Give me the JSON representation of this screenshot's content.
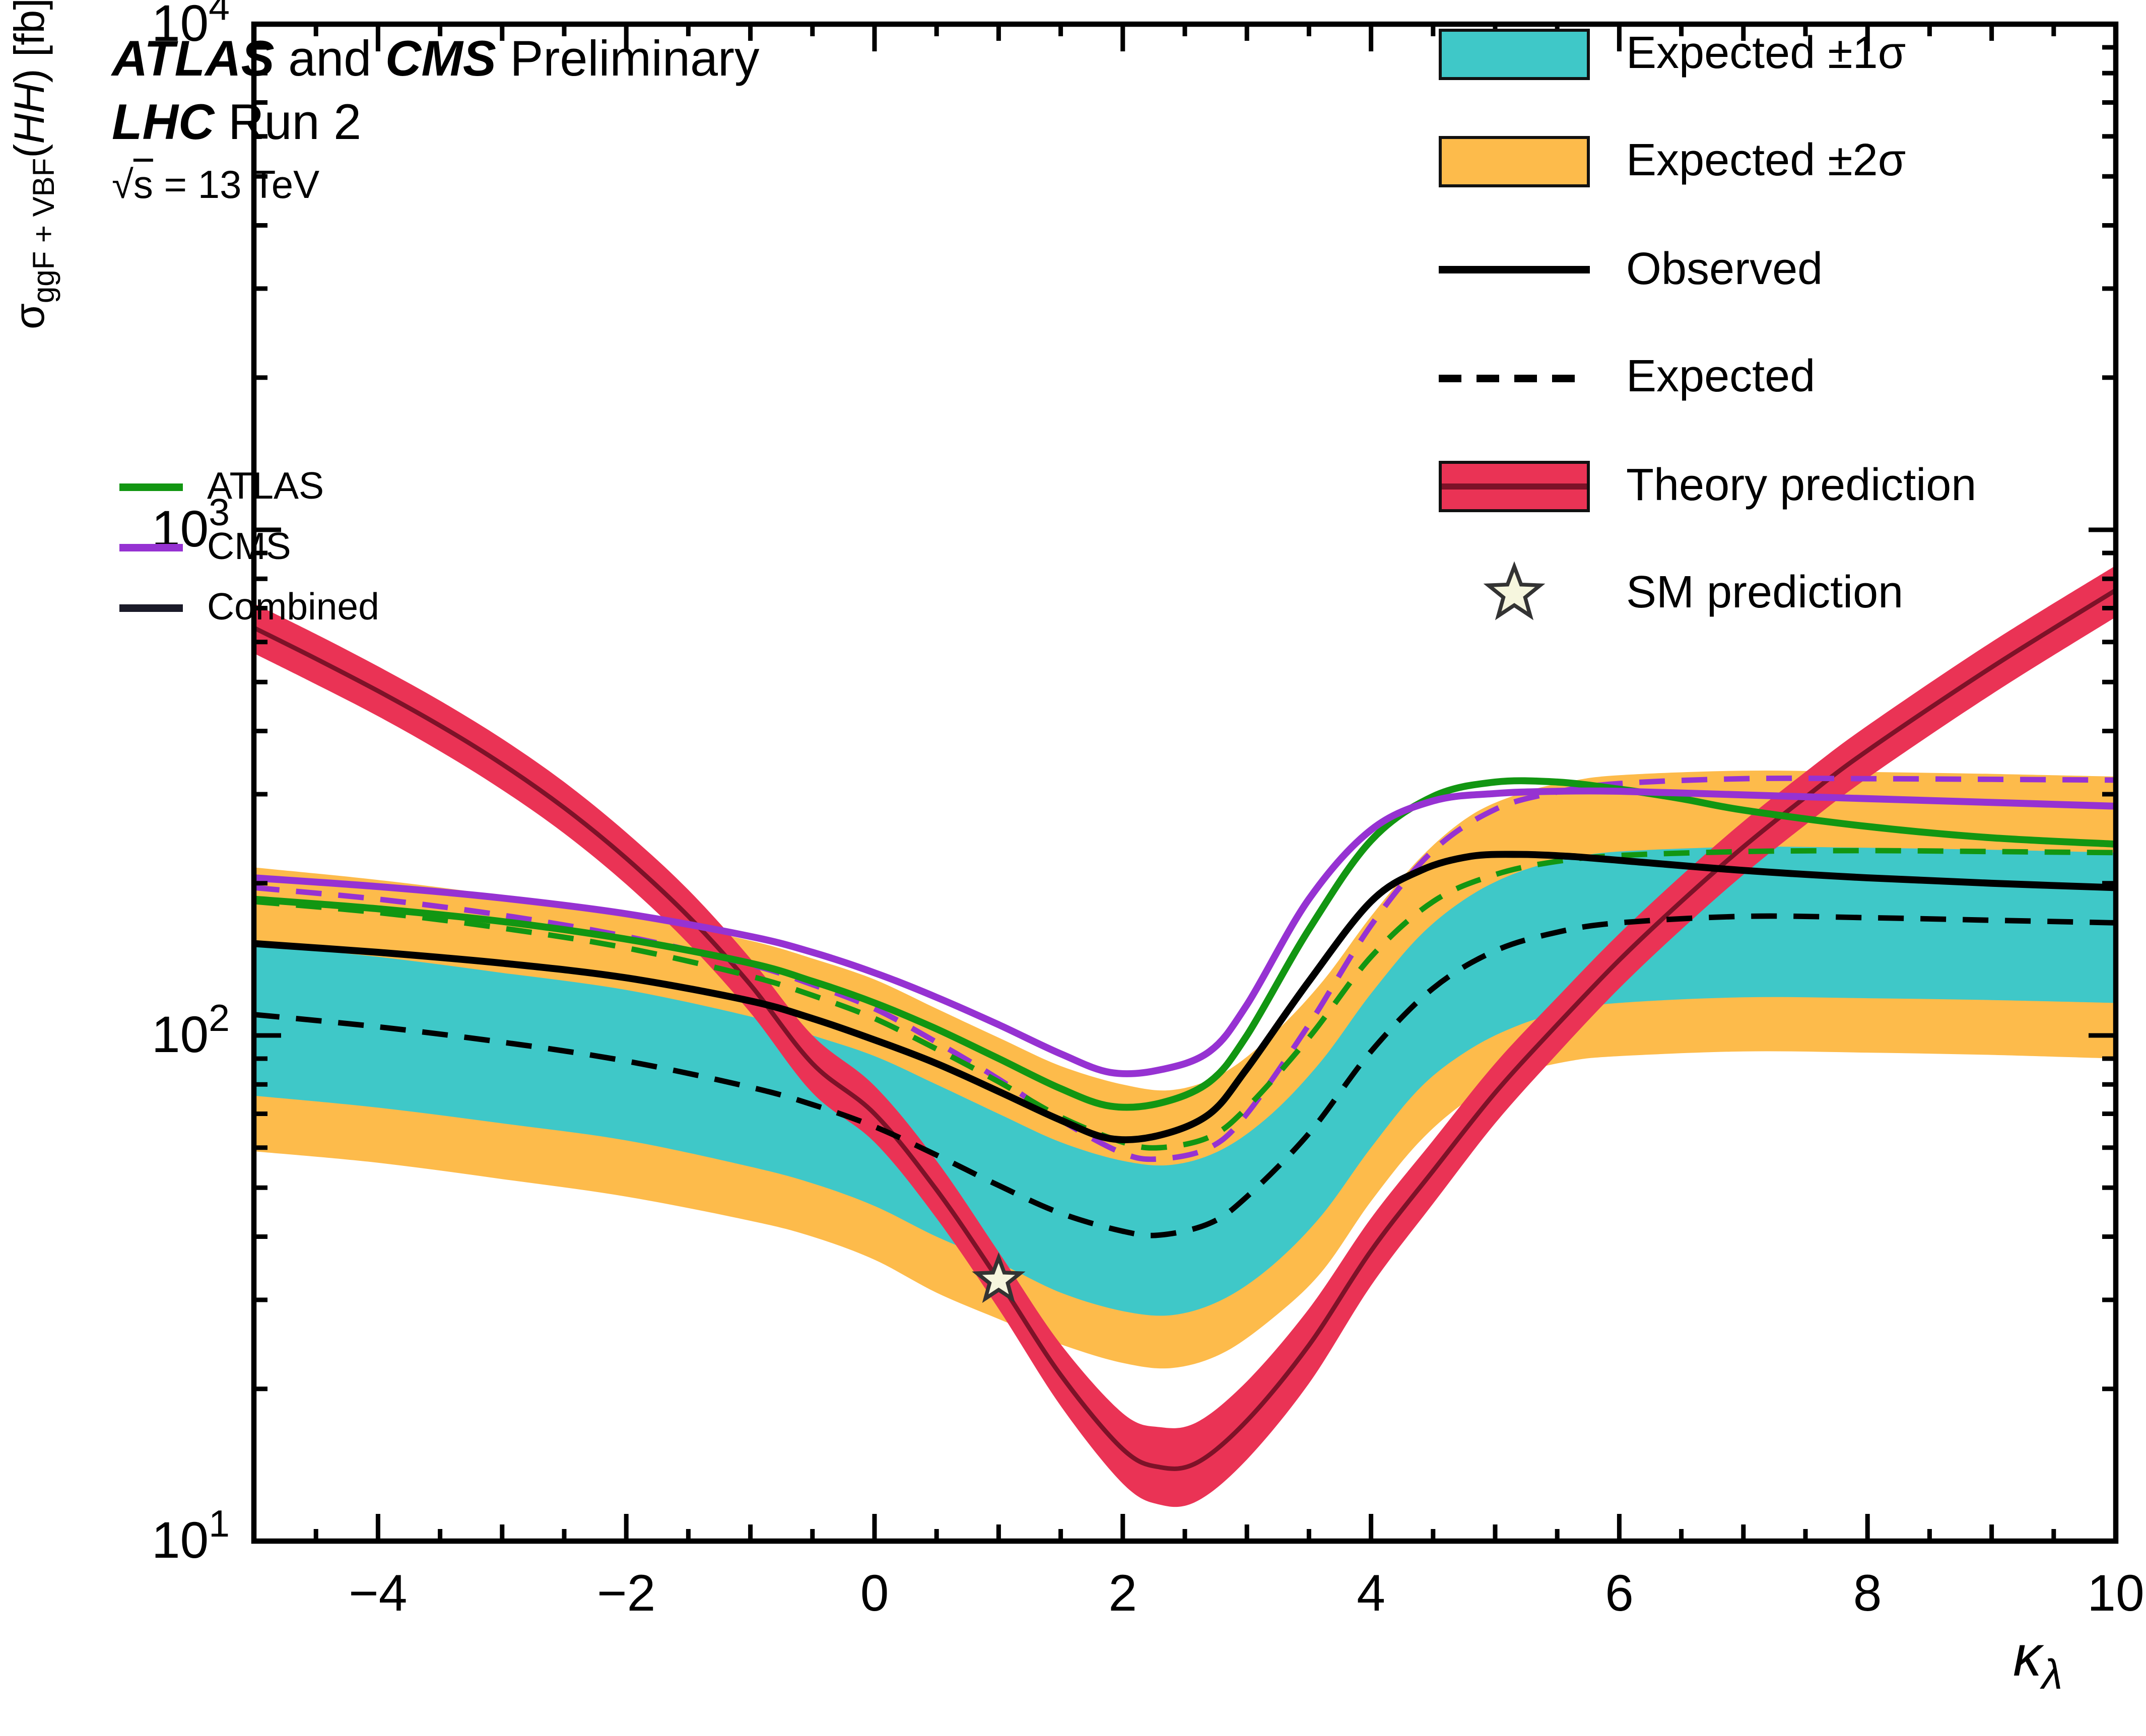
{
  "header": {
    "title_parts": {
      "exp1": "ATLAS",
      "and": " and ",
      "exp2": "CMS",
      "status": " Preliminary"
    },
    "subtitle_parts": {
      "collider": "LHC",
      "run": " Run 2"
    },
    "energy": {
      "sqrt": "√",
      "s": "s",
      "rest": " = 13 TeV"
    }
  },
  "mini_legend": {
    "items": [
      {
        "label": "ATLAS",
        "color": "#129612"
      },
      {
        "label": "CMS",
        "color": "#9632D2"
      },
      {
        "label": "Combined",
        "color": "#1A1A28"
      }
    ]
  },
  "legend": {
    "items": [
      {
        "label": "Expected ±1σ",
        "type": "band"
      },
      {
        "label": "Expected ±2σ",
        "type": "band"
      },
      {
        "label": "Observed",
        "type": "line"
      },
      {
        "label": "Expected",
        "type": "dashed"
      },
      {
        "label": "Theory prediction",
        "type": "theory-band"
      },
      {
        "label": "SM prediction",
        "type": "star"
      }
    ]
  },
  "axes": {
    "y_label": {
      "sigma": "σ",
      "sub": "ggF + VBF",
      "open": "(",
      "process": "HH",
      "close": ") [fb]"
    },
    "x_label": {
      "kappa": "κ",
      "sub": "λ"
    },
    "x_tick_labels": [
      "−4",
      "−2",
      "0",
      "2",
      "4",
      "6",
      "8",
      "10"
    ],
    "y_tick_base": "10",
    "y_tick_exponents": [
      "1",
      "2",
      "3",
      "4"
    ]
  },
  "chart_data": {
    "type": "line",
    "title": "ATLAS and CMS Preliminary, LHC Run 2, √s = 13 TeV",
    "xlabel": "κ_λ",
    "ylabel": "σ_ggF+VBF(HH) [fb]",
    "xlim": [
      -5,
      10
    ],
    "ylim": [
      10,
      10000
    ],
    "yscale": "log",
    "grid": false,
    "legend_position": "top-right",
    "x_major_ticks": [
      -4,
      -2,
      0,
      2,
      4,
      6,
      8,
      10
    ],
    "x_minor_step": 0.5,
    "bands": [
      {
        "name": "expected-2sigma",
        "label": "Expected ±2σ",
        "color": "#FDBB4B",
        "points": [
          [
            -5,
            59,
            215
          ],
          [
            -4,
            56,
            203
          ],
          [
            -3,
            52,
            189
          ],
          [
            -2,
            48,
            174
          ],
          [
            -1,
            43,
            154
          ],
          [
            -0.5,
            40,
            142
          ],
          [
            0,
            36,
            129
          ],
          [
            0.5,
            31,
            113
          ],
          [
            1,
            27.5,
            99
          ],
          [
            1.5,
            24.5,
            87
          ],
          [
            2,
            22.5,
            80
          ],
          [
            2.4,
            22,
            78
          ],
          [
            2.8,
            23.5,
            84
          ],
          [
            3.2,
            27.5,
            100
          ],
          [
            3.6,
            34,
            127
          ],
          [
            4,
            47,
            172
          ],
          [
            4.4,
            62,
            225
          ],
          [
            4.8,
            75,
            272
          ],
          [
            5.2,
            84,
            301
          ],
          [
            5.6,
            89,
            318
          ],
          [
            6,
            91,
            327
          ],
          [
            7,
            93,
            334
          ],
          [
            8,
            92.5,
            332
          ],
          [
            9,
            91.5,
            329
          ],
          [
            10,
            90,
            325
          ]
        ]
      },
      {
        "name": "expected-1sigma",
        "label": "Expected ±1σ",
        "color": "#3FC8C8",
        "points": [
          [
            -5,
            76,
            151
          ],
          [
            -4,
            72,
            143
          ],
          [
            -3,
            67,
            133
          ],
          [
            -2,
            62,
            123
          ],
          [
            -1,
            55,
            109
          ],
          [
            -0.5,
            51,
            100
          ],
          [
            0,
            46,
            91
          ],
          [
            0.5,
            40,
            80
          ],
          [
            1,
            35.5,
            70
          ],
          [
            1.5,
            31,
            61.5
          ],
          [
            2,
            28.5,
            56.5
          ],
          [
            2.4,
            28,
            55.5
          ],
          [
            2.8,
            30,
            59.5
          ],
          [
            3.2,
            35,
            70
          ],
          [
            3.6,
            44,
            89
          ],
          [
            4,
            60,
            121
          ],
          [
            4.4,
            79,
            158
          ],
          [
            4.8,
            94,
            189
          ],
          [
            5.2,
            105,
            211
          ],
          [
            5.6,
            112,
            224
          ],
          [
            6,
            116,
            231
          ],
          [
            7,
            119,
            236
          ],
          [
            8,
            118.5,
            235
          ],
          [
            9,
            117.5,
            233
          ],
          [
            10,
            116,
            230
          ]
        ]
      }
    ],
    "theory": {
      "name": "theory-prediction",
      "label": "Theory prediction",
      "band_color": "#EA3355",
      "line_color": "#7D1228",
      "points": [
        [
          -5,
          570,
          640,
          715
        ],
        [
          -4.5,
          495,
          556,
          622
        ],
        [
          -4,
          428,
          480,
          537
        ],
        [
          -3.5,
          365,
          410,
          459
        ],
        [
          -3,
          306,
          344,
          386
        ],
        [
          -2.5,
          251,
          282,
          317
        ],
        [
          -2,
          199,
          224,
          252
        ],
        [
          -1.5,
          152,
          172,
          194
        ],
        [
          -1,
          111,
          126,
          142
        ],
        [
          -0.5,
          77,
          88,
          100
        ],
        [
          0,
          61.5,
          70,
          79.5
        ],
        [
          0.5,
          43.5,
          49.5,
          56.5
        ],
        [
          1,
          28.8,
          32.8,
          37.3
        ],
        [
          1.5,
          18.5,
          21.3,
          24.5
        ],
        [
          2,
          13,
          15.2,
          17.9
        ],
        [
          2.3,
          11.8,
          14,
          16.8
        ],
        [
          2.6,
          12,
          14.3,
          17.2
        ],
        [
          3,
          14.5,
          17.3,
          20.7
        ],
        [
          3.5,
          20.5,
          24.4,
          28.8
        ],
        [
          4,
          32,
          37.5,
          43.5
        ],
        [
          4.5,
          46.5,
          54,
          62
        ],
        [
          5,
          67,
          77,
          88
        ],
        [
          5.5,
          92,
          105,
          119
        ],
        [
          6,
          124,
          141,
          159
        ],
        [
          6.5,
          162,
          184,
          207
        ],
        [
          7,
          208,
          236,
          265
        ],
        [
          7.5,
          261,
          296,
          332
        ],
        [
          8,
          323,
          366,
          410
        ],
        [
          9,
          473,
          535,
          600
        ],
        [
          10,
          672,
          760,
          850
        ]
      ]
    },
    "series": [
      {
        "name": "cms-expected",
        "label": "CMS expected",
        "style": "dashed",
        "color": "#9632D2",
        "points": [
          [
            -5,
            196
          ],
          [
            -4,
            186
          ],
          [
            -3,
            173
          ],
          [
            -2,
            157
          ],
          [
            -1,
            138
          ],
          [
            -0.5,
            126
          ],
          [
            0,
            113
          ],
          [
            0.5,
            97
          ],
          [
            1,
            82
          ],
          [
            1.5,
            68
          ],
          [
            2,
            58.5
          ],
          [
            2.3,
            57
          ],
          [
            2.7,
            60
          ],
          [
            3,
            70
          ],
          [
            3.5,
            105
          ],
          [
            4,
            165
          ],
          [
            4.5,
            232
          ],
          [
            5,
            280
          ],
          [
            5.5,
            303
          ],
          [
            6,
            315
          ],
          [
            7,
            322
          ],
          [
            8,
            322
          ],
          [
            9,
            321
          ],
          [
            10,
            320
          ]
        ]
      },
      {
        "name": "atlas-expected",
        "label": "ATLAS expected",
        "style": "dashed",
        "color": "#129612",
        "points": [
          [
            -5,
            184
          ],
          [
            -4,
            175
          ],
          [
            -3,
            163
          ],
          [
            -2,
            149
          ],
          [
            -1,
            131
          ],
          [
            -0.5,
            120
          ],
          [
            0,
            108
          ],
          [
            0.5,
            94
          ],
          [
            1,
            81
          ],
          [
            1.5,
            69
          ],
          [
            2,
            61.5
          ],
          [
            2.3,
            60
          ],
          [
            2.7,
            63
          ],
          [
            3,
            72
          ],
          [
            3.5,
            99
          ],
          [
            4,
            143
          ],
          [
            4.5,
            184
          ],
          [
            5,
            208
          ],
          [
            5.5,
            221
          ],
          [
            6,
            227
          ],
          [
            7,
            231
          ],
          [
            8,
            232
          ],
          [
            9,
            231
          ],
          [
            10,
            230
          ]
        ]
      },
      {
        "name": "combined-expected",
        "label": "Expected",
        "style": "dashed",
        "color": "#000000",
        "points": [
          [
            -5,
            110
          ],
          [
            -4,
            104
          ],
          [
            -3,
            97
          ],
          [
            -2,
            89
          ],
          [
            -1,
            79
          ],
          [
            -0.5,
            73
          ],
          [
            0,
            66
          ],
          [
            0.5,
            58
          ],
          [
            1,
            50.5
          ],
          [
            1.5,
            44.5
          ],
          [
            2,
            41
          ],
          [
            2.3,
            40.3
          ],
          [
            2.7,
            42.5
          ],
          [
            3,
            48
          ],
          [
            3.5,
            64
          ],
          [
            4,
            93
          ],
          [
            4.5,
            124
          ],
          [
            5,
            147
          ],
          [
            5.5,
            160
          ],
          [
            6,
            167
          ],
          [
            7,
            172
          ],
          [
            8,
            171
          ],
          [
            9,
            169
          ],
          [
            10,
            167
          ]
        ]
      },
      {
        "name": "atlas-observed",
        "label": "ATLAS",
        "style": "solid",
        "color": "#129612",
        "points": [
          [
            -5,
            186
          ],
          [
            -4,
            178
          ],
          [
            -3,
            168
          ],
          [
            -2,
            155
          ],
          [
            -1,
            139
          ],
          [
            -0.5,
            128
          ],
          [
            0,
            116
          ],
          [
            0.5,
            103
          ],
          [
            1,
            90
          ],
          [
            1.5,
            78.5
          ],
          [
            1.9,
            72.5
          ],
          [
            2.3,
            73.5
          ],
          [
            2.7,
            81
          ],
          [
            3,
            100
          ],
          [
            3.5,
            162
          ],
          [
            4,
            243
          ],
          [
            4.5,
            297
          ],
          [
            5,
            317
          ],
          [
            5.5,
            317
          ],
          [
            6,
            307
          ],
          [
            6.5,
            294
          ],
          [
            7,
            279
          ],
          [
            8,
            259
          ],
          [
            9,
            246
          ],
          [
            10,
            239
          ]
        ]
      },
      {
        "name": "cms-observed",
        "label": "CMS",
        "style": "solid",
        "color": "#9632D2",
        "points": [
          [
            -5,
            205
          ],
          [
            -4,
            197
          ],
          [
            -3,
            187
          ],
          [
            -2,
            174
          ],
          [
            -1,
            157
          ],
          [
            -0.5,
            146
          ],
          [
            0,
            133
          ],
          [
            0.5,
            119
          ],
          [
            1,
            105
          ],
          [
            1.5,
            92
          ],
          [
            1.9,
            84.5
          ],
          [
            2.3,
            85.5
          ],
          [
            2.7,
            93
          ],
          [
            3,
            115
          ],
          [
            3.5,
            186
          ],
          [
            4,
            255
          ],
          [
            4.5,
            291
          ],
          [
            5,
            301
          ],
          [
            5.5,
            304
          ],
          [
            6,
            304
          ],
          [
            7,
            299
          ],
          [
            8,
            294
          ],
          [
            9,
            289
          ],
          [
            10,
            284
          ]
        ]
      },
      {
        "name": "combined-observed",
        "label": "Observed",
        "style": "solid",
        "color": "#000000",
        "points": [
          [
            -5,
            152
          ],
          [
            -4,
            146
          ],
          [
            -3,
            139
          ],
          [
            -2,
            130
          ],
          [
            -1,
            117
          ],
          [
            -0.5,
            108
          ],
          [
            0,
            98
          ],
          [
            0.5,
            88
          ],
          [
            1,
            77.5
          ],
          [
            1.5,
            68
          ],
          [
            1.9,
            62.5
          ],
          [
            2.3,
            63.5
          ],
          [
            2.7,
            70
          ],
          [
            3,
            86
          ],
          [
            3.5,
            128
          ],
          [
            4,
            184
          ],
          [
            4.4,
            212
          ],
          [
            4.8,
            226
          ],
          [
            5.2,
            228
          ],
          [
            5.6,
            226
          ],
          [
            6,
            222
          ],
          [
            7,
            212
          ],
          [
            8,
            205
          ],
          [
            9,
            200
          ],
          [
            10,
            196
          ]
        ]
      }
    ],
    "sm_prediction": {
      "label": "SM prediction",
      "x": 1,
      "y": 32.8
    }
  }
}
